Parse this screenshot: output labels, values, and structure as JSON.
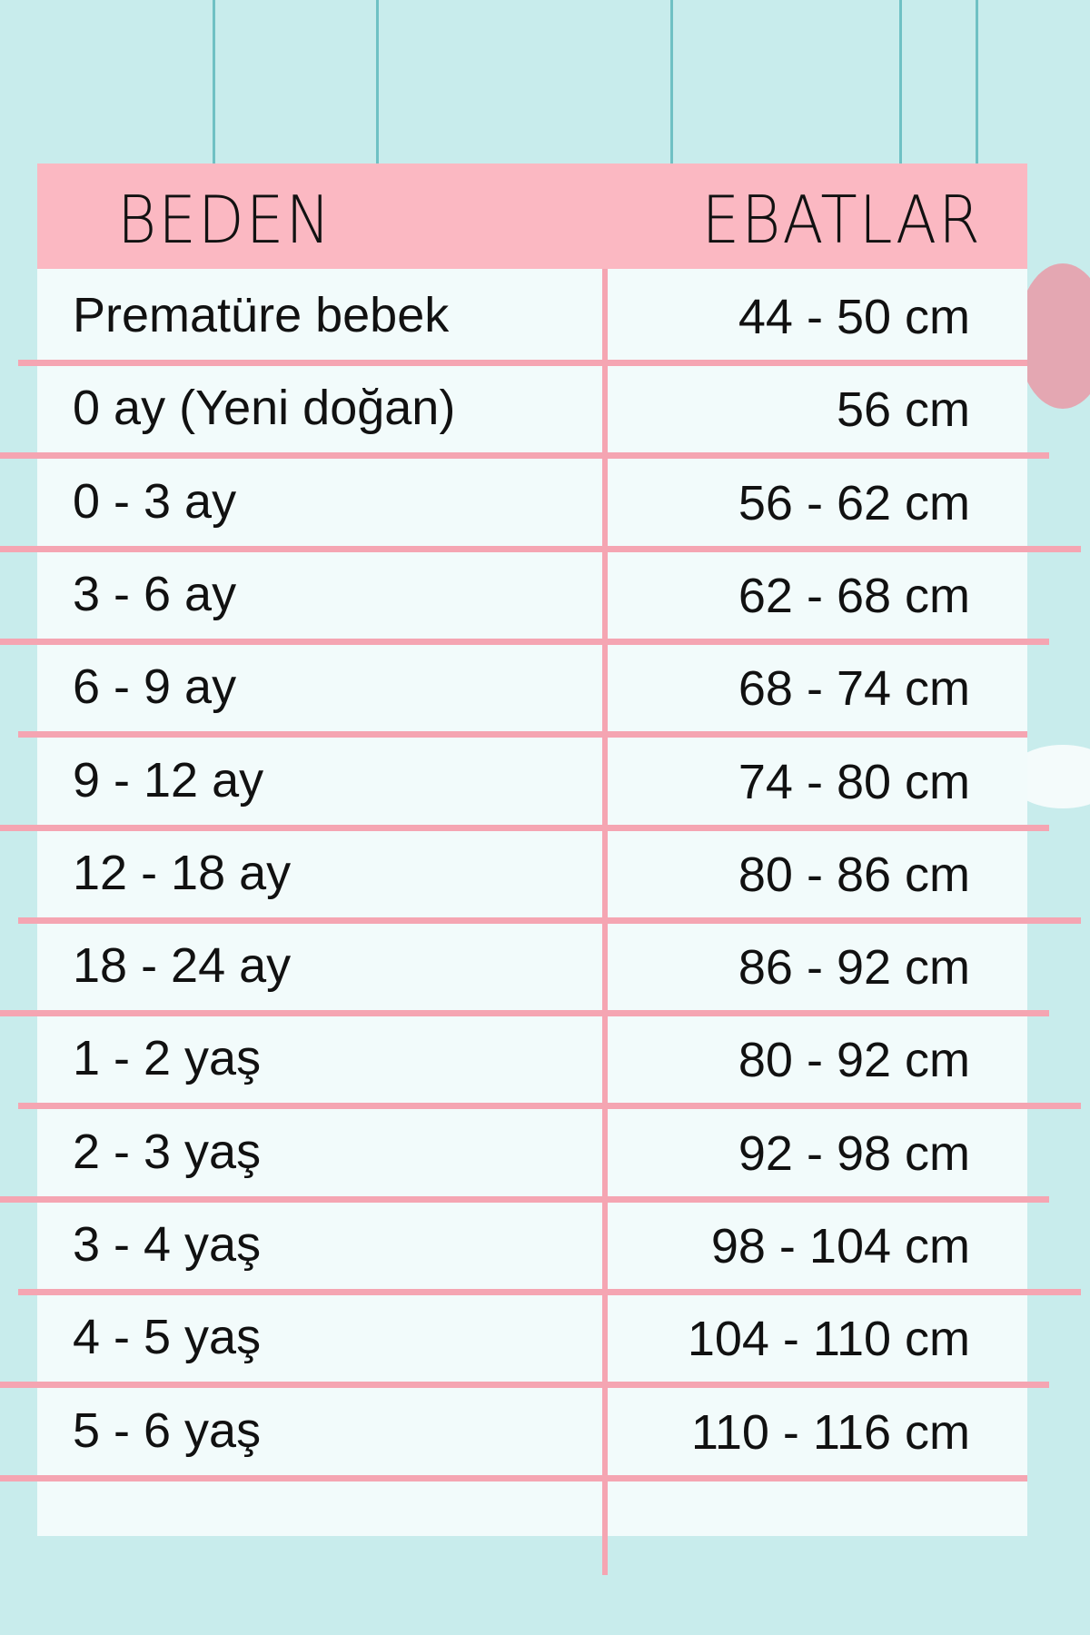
{
  "header": {
    "size_label": "BEDEN",
    "measure_label": "EBATLAR"
  },
  "colors": {
    "background": "#c8ecec",
    "header": "#fbb8c2",
    "lines": "#f5a5b2",
    "table": "#f2fbfb"
  },
  "rows": [
    {
      "size": "Prematüre bebek",
      "measure": "44 - 50 cm"
    },
    {
      "size": "0 ay (Yeni doğan)",
      "measure": "56 cm"
    },
    {
      "size": "0 - 3 ay",
      "measure": "56 - 62 cm"
    },
    {
      "size": "3 - 6 ay",
      "measure": "62 - 68 cm"
    },
    {
      "size": "6 - 9 ay",
      "measure": "68 - 74 cm"
    },
    {
      "size": "9 - 12 ay",
      "measure": "74 - 80 cm"
    },
    {
      "size": "12 - 18 ay",
      "measure": "80 - 86 cm"
    },
    {
      "size": "18 - 24 ay",
      "measure": "86 - 92 cm"
    },
    {
      "size": "1 - 2 yaş",
      "measure": "80 - 92 cm"
    },
    {
      "size": "2 - 3 yaş",
      "measure": "92 - 98 cm"
    },
    {
      "size": "3 - 4 yaş",
      "measure": "98 - 104 cm"
    },
    {
      "size": "4 - 5 yaş",
      "measure": "104 - 110 cm"
    },
    {
      "size": "5 - 6 yaş",
      "measure": "110 - 116 cm"
    }
  ]
}
